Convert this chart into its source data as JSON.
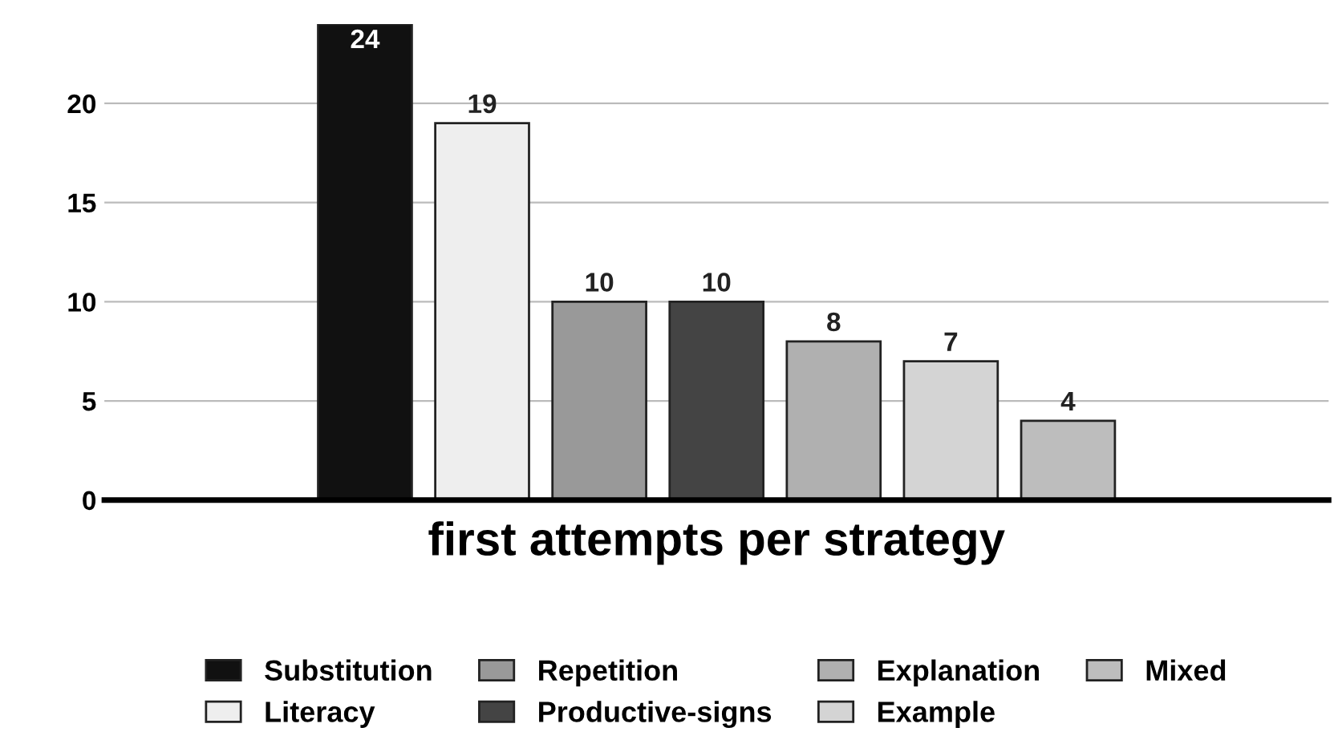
{
  "chart_data": {
    "type": "bar",
    "xlabel": "first attempts per strategy",
    "categories": [
      null
    ],
    "series": [
      {
        "name": "Substitution",
        "color": "#111111",
        "values": [
          24
        ]
      },
      {
        "name": "Literacy",
        "color": "#eeeeee",
        "values": [
          19
        ]
      },
      {
        "name": "Repetition",
        "color": "#999999",
        "values": [
          10
        ]
      },
      {
        "name": "Productive-signs",
        "color": "#444444",
        "values": [
          10
        ]
      },
      {
        "name": "Explanation",
        "color": "#b0b0b0",
        "values": [
          8
        ]
      },
      {
        "name": "Example",
        "color": "#d4d4d4",
        "values": [
          7
        ]
      },
      {
        "name": "Mixed",
        "color": "#bdbdbd",
        "values": [
          4
        ]
      }
    ],
    "ylim": [
      0,
      24
    ],
    "yticks": [
      0,
      5,
      10,
      15,
      20
    ],
    "grid": "y",
    "legend": "bottom",
    "data_labels": true
  }
}
